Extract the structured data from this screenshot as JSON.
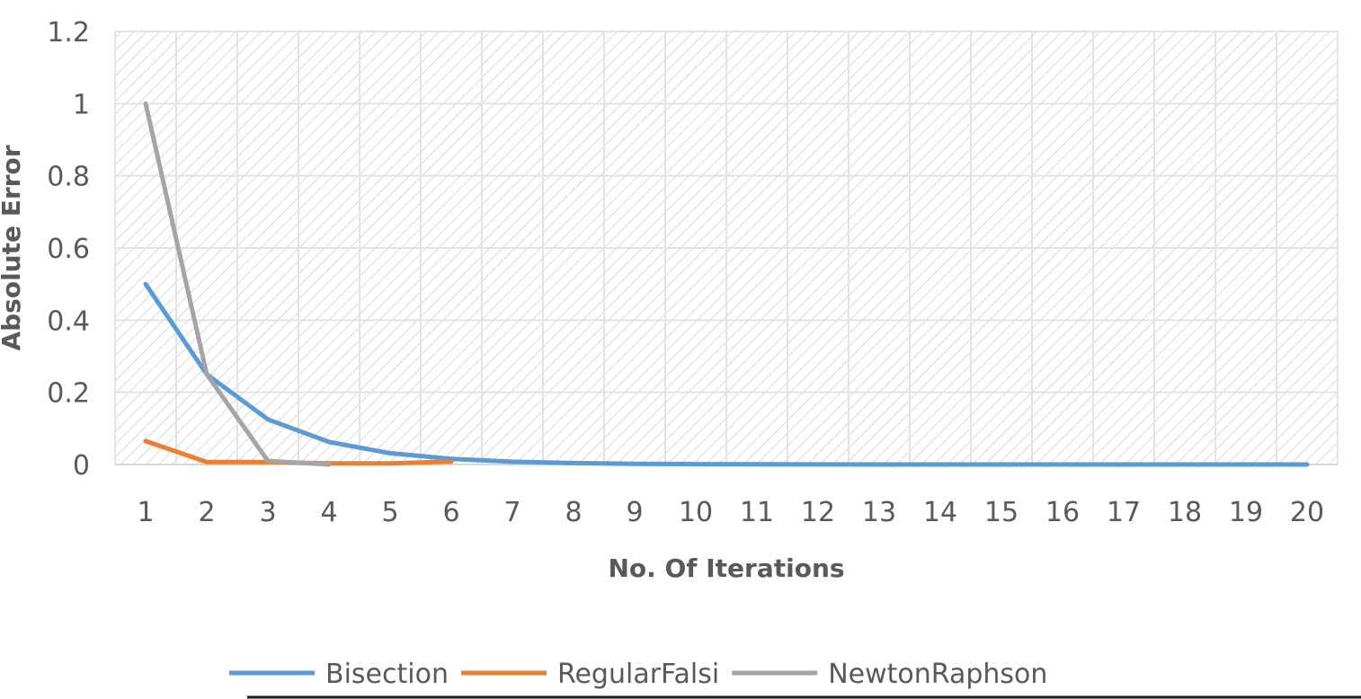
{
  "chart_data": {
    "type": "line",
    "title": "",
    "xlabel": "No. Of Iterations",
    "ylabel": "Absolute Error",
    "categories": [
      "1",
      "2",
      "3",
      "4",
      "5",
      "6",
      "7",
      "8",
      "9",
      "10",
      "11",
      "12",
      "13",
      "14",
      "15",
      "16",
      "17",
      "18",
      "19",
      "20"
    ],
    "ylim": [
      0,
      1.2
    ],
    "yticks": [
      "0",
      "0.2",
      "0.4",
      "0.6",
      "0.8",
      "1",
      "1.2"
    ],
    "grid": true,
    "legend_position": "bottom",
    "series": [
      {
        "name": "Bisection",
        "color": "#5b9bd5",
        "values": [
          0.5,
          0.25,
          0.125,
          0.0625,
          0.03125,
          0.015625,
          0.0078,
          0.0039,
          0.002,
          0.001,
          0.0005,
          0.00024,
          0.00012,
          6e-05,
          3e-05,
          1.5e-05,
          7.6e-06,
          3.8e-06,
          1.9e-06,
          9.5e-07
        ]
      },
      {
        "name": "RegularFalsi",
        "color": "#ed7d31",
        "values": [
          0.065,
          0.007,
          0.007,
          0.003,
          0.003,
          0.008,
          null,
          null,
          null,
          null,
          null,
          null,
          null,
          null,
          null,
          null,
          null,
          null,
          null,
          null
        ]
      },
      {
        "name": "NewtonRaphson",
        "color": "#a5a5a5",
        "values": [
          1.0,
          0.25,
          0.01,
          0.0001,
          null,
          null,
          null,
          null,
          null,
          null,
          null,
          null,
          null,
          null,
          null,
          null,
          null,
          null,
          null,
          null
        ]
      }
    ]
  }
}
